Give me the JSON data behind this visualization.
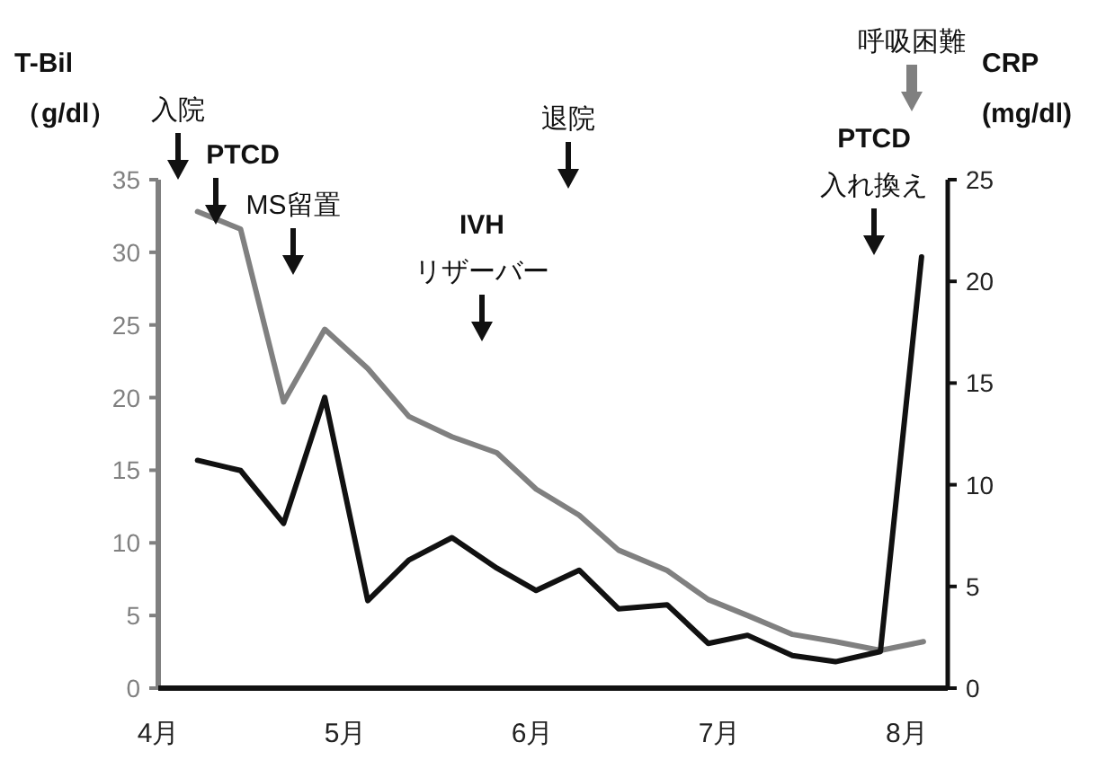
{
  "chart_data": {
    "type": "line",
    "ylabel": "T-Bil\n（g/dl）",
    "y2label": "CRP\n(mg/dl)",
    "xlim": [
      4,
      8.22
    ],
    "xticks": [
      {
        "value": 4,
        "label": "4月"
      },
      {
        "value": 5,
        "label": "5月"
      },
      {
        "value": 6,
        "label": "6月"
      },
      {
        "value": 7,
        "label": "7月"
      },
      {
        "value": 8,
        "label": "8月"
      }
    ],
    "ylim": [
      0,
      35
    ],
    "yticks": [
      0,
      5,
      10,
      15,
      20,
      25,
      30,
      35
    ],
    "y2lim": [
      0,
      25
    ],
    "y2ticks": [
      0,
      5,
      10,
      15,
      20,
      25
    ],
    "grid": false,
    "series": [
      {
        "color": "#808080",
        "x": [
          4.21,
          4.44,
          4.67,
          4.89,
          5.12,
          5.34,
          5.57,
          5.81,
          6.02,
          6.25,
          6.46,
          6.72,
          6.94,
          7.15,
          7.39,
          7.62,
          7.86,
          8.09
        ],
        "values": [
          32.8,
          31.6,
          19.7,
          24.7,
          22.0,
          18.7,
          17.3,
          16.2,
          13.7,
          11.9,
          9.5,
          8.1,
          6.1,
          5.0,
          3.7,
          3.2,
          2.6,
          3.2
        ]
      },
      {
        "color": "#111111",
        "axis": "y2",
        "x": [
          4.21,
          4.44,
          4.67,
          4.89,
          5.12,
          5.34,
          5.57,
          5.81,
          6.02,
          6.25,
          6.46,
          6.72,
          6.94,
          7.15,
          7.39,
          7.62,
          7.86,
          8.08
        ],
        "values": [
          11.2,
          10.7,
          8.1,
          14.3,
          4.3,
          6.3,
          7.4,
          5.9,
          4.8,
          5.8,
          3.9,
          4.1,
          2.2,
          2.6,
          1.6,
          1.3,
          1.8,
          21.2
        ]
      }
    ],
    "annotations": [
      "入院",
      "PTCD",
      "MS留置",
      "IVH\nリザーバー",
      "退院",
      "PTCD\n入れ換え",
      "呼吸困難"
    ]
  }
}
